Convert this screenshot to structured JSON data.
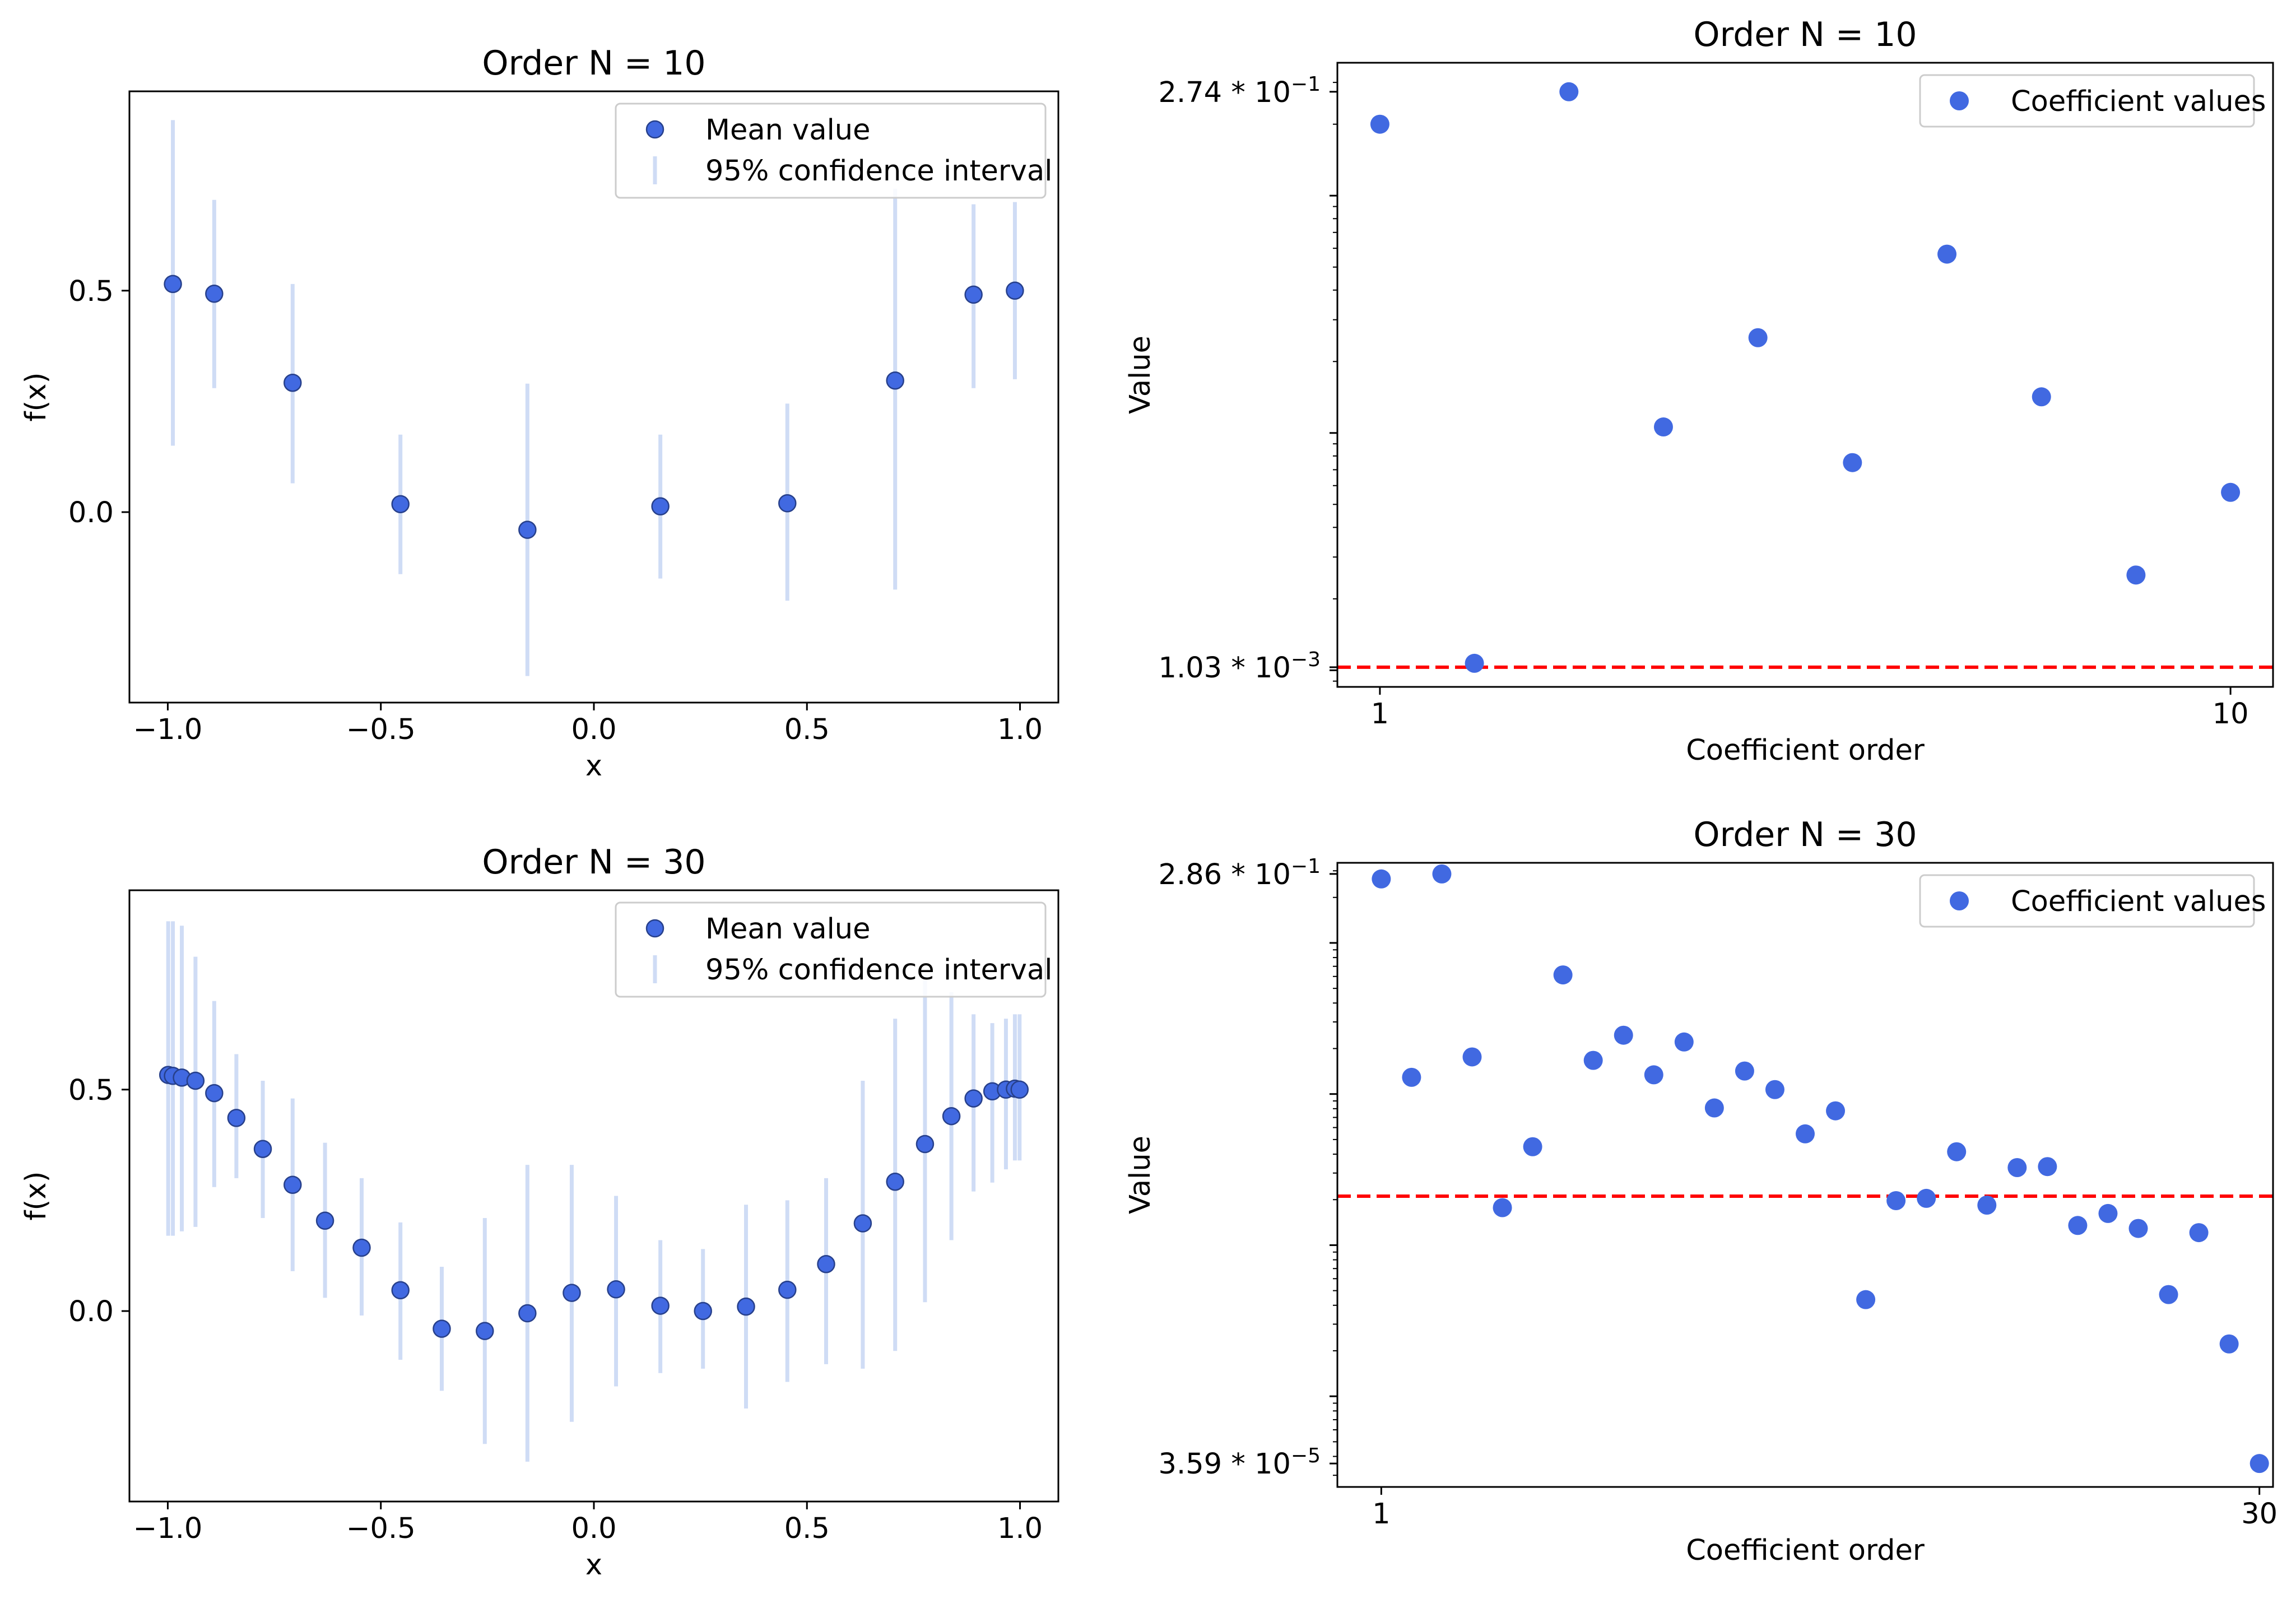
{
  "chart_data": [
    {
      "type": "scatter",
      "panel": "top-left",
      "title": "Order N = 10",
      "xlabel": "x",
      "ylabel": "f(x)",
      "xlim": [
        -1.09,
        1.09
      ],
      "ylim": [
        -0.43,
        0.95
      ],
      "xticks": [
        -1.0,
        -0.5,
        0.0,
        0.5,
        1.0
      ],
      "xtick_labels": [
        "−1.0",
        "−0.5",
        "0.0",
        "0.5",
        "1.0"
      ],
      "yticks": [
        0.0,
        0.5
      ],
      "ytick_labels": [
        "0.0",
        "0.5"
      ],
      "legend": {
        "position": "top-right",
        "entries": [
          "Mean value",
          "95% confidence interval"
        ]
      },
      "series": [
        {
          "name": "Mean value",
          "x": [
            -0.988,
            -0.891,
            -0.707,
            -0.454,
            -0.156,
            0.156,
            0.454,
            0.707,
            0.891,
            0.988
          ],
          "y": [
            0.515,
            0.493,
            0.292,
            0.018,
            -0.04,
            0.013,
            0.02,
            0.297,
            0.491,
            0.5
          ],
          "ci_low": [
            0.15,
            0.28,
            0.065,
            -0.14,
            -0.37,
            -0.15,
            -0.2,
            -0.175,
            0.28,
            0.3
          ],
          "ci_high": [
            0.885,
            0.705,
            0.515,
            0.175,
            0.29,
            0.175,
            0.245,
            0.73,
            0.695,
            0.7
          ]
        }
      ]
    },
    {
      "type": "scatter",
      "panel": "top-right",
      "title": "Order N = 10",
      "xlabel": "Coefficient order",
      "ylabel": "Value",
      "yscale": "log",
      "xlim": [
        0.55,
        10.45
      ],
      "ylim_log10": [
        -3.07,
        -0.44
      ],
      "xticks": [
        1,
        10
      ],
      "xtick_labels": [
        "1",
        "10"
      ],
      "ytick_labels": [
        {
          "value": 0.274,
          "mantissa": "2.74 * 10",
          "exp": "−1"
        },
        {
          "value": 0.00103,
          "mantissa": "1.03 * 10",
          "exp": "−3"
        }
      ],
      "threshold": 0.00103,
      "legend": {
        "position": "top-right",
        "entries": [
          "Coefficient values"
        ]
      },
      "series": [
        {
          "name": "Coefficient values",
          "x": [
            1,
            2,
            3,
            4,
            5,
            6,
            7,
            8,
            9,
            10
          ],
          "y": [
            0.2,
            0.00107,
            0.274,
            0.0106,
            0.0252,
            0.0075,
            0.0567,
            0.0142,
            0.00252,
            0.00562
          ]
        }
      ]
    },
    {
      "type": "scatter",
      "panel": "bottom-left",
      "title": "Order N = 30",
      "xlabel": "x",
      "ylabel": "f(x)",
      "xlim": [
        -1.09,
        1.09
      ],
      "ylim": [
        -0.43,
        0.95
      ],
      "xticks": [
        -1.0,
        -0.5,
        0.0,
        0.5,
        1.0
      ],
      "xtick_labels": [
        "−1.0",
        "−0.5",
        "0.0",
        "0.5",
        "1.0"
      ],
      "yticks": [
        0.0,
        0.5
      ],
      "ytick_labels": [
        "0.0",
        "0.5"
      ],
      "legend": {
        "position": "top-right",
        "entries": [
          "Mean value",
          "95% confidence interval"
        ]
      },
      "series": [
        {
          "name": "Mean value",
          "x": [
            -0.999,
            -0.988,
            -0.967,
            -0.935,
            -0.891,
            -0.839,
            -0.777,
            -0.707,
            -0.631,
            -0.545,
            -0.454,
            -0.357,
            -0.256,
            -0.156,
            -0.052,
            0.052,
            0.156,
            0.256,
            0.357,
            0.454,
            0.545,
            0.631,
            0.707,
            0.777,
            0.839,
            0.891,
            0.935,
            0.967,
            0.988,
            0.999
          ],
          "y": [
            0.533,
            0.531,
            0.527,
            0.52,
            0.492,
            0.436,
            0.366,
            0.285,
            0.204,
            0.143,
            0.047,
            -0.04,
            -0.045,
            -0.005,
            0.041,
            0.049,
            0.012,
            0.0,
            0.01,
            0.048,
            0.106,
            0.198,
            0.292,
            0.377,
            0.44,
            0.48,
            0.496,
            0.5,
            0.502,
            0.5
          ],
          "ci_low": [
            0.17,
            0.17,
            0.18,
            0.19,
            0.28,
            0.3,
            0.21,
            0.09,
            0.03,
            -0.01,
            -0.11,
            -0.18,
            -0.3,
            -0.34,
            -0.25,
            -0.17,
            -0.14,
            -0.13,
            -0.22,
            -0.16,
            -0.12,
            -0.13,
            -0.09,
            0.02,
            0.16,
            0.27,
            0.29,
            0.32,
            0.34,
            0.34
          ],
          "ci_high": [
            0.88,
            0.88,
            0.87,
            0.8,
            0.7,
            0.58,
            0.52,
            0.48,
            0.38,
            0.3,
            0.2,
            0.1,
            0.21,
            0.33,
            0.33,
            0.26,
            0.16,
            0.14,
            0.24,
            0.25,
            0.3,
            0.52,
            0.66,
            0.76,
            0.72,
            0.67,
            0.65,
            0.66,
            0.67,
            0.67
          ]
        }
      ]
    },
    {
      "type": "scatter",
      "panel": "bottom-right",
      "title": "Order N = 30",
      "xlabel": "Coefficient order",
      "ylabel": "Value",
      "yscale": "log",
      "xlim": [
        -0.45,
        30.45
      ],
      "ylim_log10": [
        -4.6,
        -0.47
      ],
      "xticks": [
        1,
        30
      ],
      "xtick_labels": [
        "1",
        "30"
      ],
      "ytick_labels": [
        {
          "value": 0.286,
          "mantissa": "2.86 * 10",
          "exp": "−1"
        },
        {
          "value": 3.59e-05,
          "mantissa": "3.59 * 10",
          "exp": "−5"
        }
      ],
      "threshold": 0.00211,
      "legend": {
        "position": "top-right",
        "entries": [
          "Coefficient values"
        ]
      },
      "series": [
        {
          "name": "Coefficient values",
          "x": [
            1,
            2,
            3,
            4,
            5,
            6,
            7,
            8,
            9,
            10,
            11,
            12,
            13,
            14,
            15,
            16,
            17,
            18,
            19,
            20,
            21,
            22,
            23,
            24,
            25,
            26,
            27,
            28,
            29,
            30
          ],
          "y": [
            0.265,
            0.0129,
            0.286,
            0.0176,
            0.00177,
            0.00448,
            0.0614,
            0.0167,
            0.0245,
            0.0134,
            0.0221,
            0.00809,
            0.0142,
            0.0107,
            0.00545,
            0.00774,
            0.000436,
            0.00197,
            0.00204,
            0.00415,
            0.00184,
            0.00326,
            0.00331,
            0.00135,
            0.00162,
            0.00129,
            0.000471,
            0.00121,
            0.000222,
            3.59e-05
          ]
        }
      ]
    }
  ],
  "colors": {
    "marker": "#4169e1",
    "marker_edge": "#27408b",
    "ci": "#cfdcf5",
    "threshold": "#ff0000",
    "axis": "#000000",
    "legend_border": "#cccccc"
  }
}
